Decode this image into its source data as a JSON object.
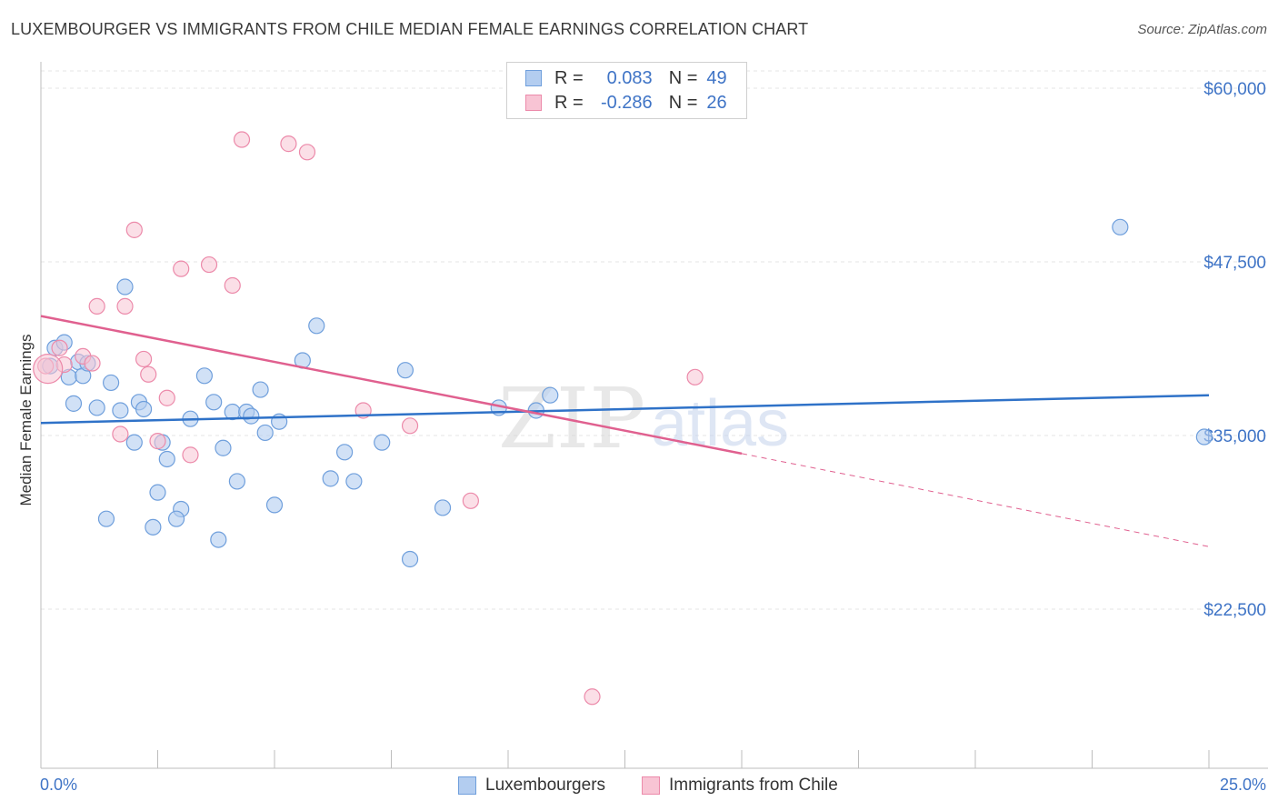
{
  "header": {
    "title": "LUXEMBOURGER VS IMMIGRANTS FROM CHILE MEDIAN FEMALE EARNINGS CORRELATION CHART",
    "source": "Source: ZipAtlas.com"
  },
  "watermark": {
    "zip": "ZIP",
    "atlas": "atlas"
  },
  "legend": {
    "rows": [
      {
        "r_label": "R =",
        "r_value": "0.083",
        "n_label": "N =",
        "n_value": "49"
      },
      {
        "r_label": "R =",
        "r_value": "-0.286",
        "n_label": "N =",
        "n_value": "26"
      }
    ]
  },
  "bottom_legend": {
    "series1": "Luxembourgers",
    "series2": "Immigrants from Chile"
  },
  "colors": {
    "blue": "#2f72c8",
    "blue_fill": "#b3cdf0",
    "blue_stroke": "#6f9fdc",
    "pink": "#e0608f",
    "pink_fill": "#f8c4d4",
    "pink_stroke": "#ec8aaa",
    "grid": "#e4e4e4",
    "axis_text": "#3f74c6"
  },
  "chart_data": {
    "type": "scatter",
    "title": "LUXEMBOURGER VS IMMIGRANTS FROM CHILE MEDIAN FEMALE EARNINGS CORRELATION CHART",
    "xlabel": "",
    "ylabel": "Median Female Earnings",
    "xlim": [
      0,
      25
    ],
    "ylim": [
      10500,
      63000
    ],
    "x_tick_labels": [
      "0.0%",
      "25.0%"
    ],
    "y_ticks": [
      22500,
      35000,
      47500,
      60000
    ],
    "y_tick_labels": [
      "$22,500",
      "$35,000",
      "$47,500",
      "$60,000"
    ],
    "grid": true,
    "series": [
      {
        "name": "Luxembourgers",
        "points": [
          [
            0.2,
            40000
          ],
          [
            0.3,
            41300
          ],
          [
            0.5,
            41700
          ],
          [
            0.6,
            39200
          ],
          [
            0.7,
            37300
          ],
          [
            0.8,
            40300
          ],
          [
            0.9,
            39300
          ],
          [
            1.0,
            40200
          ],
          [
            1.2,
            37000
          ],
          [
            1.5,
            38800
          ],
          [
            1.7,
            36800
          ],
          [
            1.8,
            45700
          ],
          [
            2.0,
            34500
          ],
          [
            2.1,
            37400
          ],
          [
            2.2,
            36900
          ],
          [
            2.4,
            28400
          ],
          [
            2.5,
            30900
          ],
          [
            2.6,
            34500
          ],
          [
            2.7,
            33300
          ],
          [
            3.0,
            29700
          ],
          [
            3.2,
            36200
          ],
          [
            3.5,
            39300
          ],
          [
            3.7,
            37400
          ],
          [
            3.8,
            27500
          ],
          [
            3.9,
            34100
          ],
          [
            4.1,
            36700
          ],
          [
            4.2,
            31700
          ],
          [
            4.4,
            36700
          ],
          [
            4.5,
            36400
          ],
          [
            4.7,
            38300
          ],
          [
            4.8,
            35200
          ],
          [
            5.0,
            30000
          ],
          [
            5.1,
            36000
          ],
          [
            5.6,
            40400
          ],
          [
            5.9,
            42900
          ],
          [
            6.2,
            31900
          ],
          [
            6.5,
            33800
          ],
          [
            6.7,
            31700
          ],
          [
            7.3,
            34500
          ],
          [
            7.8,
            39700
          ],
          [
            7.9,
            26100
          ],
          [
            8.6,
            29800
          ],
          [
            9.8,
            37000
          ],
          [
            10.6,
            36800
          ],
          [
            10.9,
            37900
          ],
          [
            23.1,
            50000
          ],
          [
            24.9,
            34900
          ],
          [
            2.9,
            29000
          ],
          [
            1.4,
            29000
          ]
        ],
        "trend": {
          "x": [
            0,
            25
          ],
          "y": [
            35900,
            37900
          ]
        }
      },
      {
        "name": "Immigrants from Chile",
        "points": [
          [
            0.1,
            40000
          ],
          [
            0.4,
            41300
          ],
          [
            0.5,
            40100
          ],
          [
            0.9,
            40700
          ],
          [
            1.1,
            40200
          ],
          [
            1.2,
            44300
          ],
          [
            1.7,
            35100
          ],
          [
            1.8,
            44300
          ],
          [
            2.0,
            49800
          ],
          [
            2.2,
            40500
          ],
          [
            2.3,
            39400
          ],
          [
            2.5,
            34600
          ],
          [
            2.7,
            37700
          ],
          [
            3.0,
            47000
          ],
          [
            3.2,
            33600
          ],
          [
            3.6,
            47300
          ],
          [
            4.1,
            45800
          ],
          [
            4.3,
            56300
          ],
          [
            5.3,
            56000
          ],
          [
            5.7,
            55400
          ],
          [
            6.9,
            36800
          ],
          [
            7.9,
            35700
          ],
          [
            9.2,
            30300
          ],
          [
            11.8,
            16200
          ],
          [
            14.0,
            39200
          ],
          [
            0.15,
            39800
          ]
        ],
        "trend": {
          "x": [
            0,
            15
          ],
          "y": [
            43600,
            33700
          ]
        },
        "trend_extension": {
          "x": [
            15,
            25
          ],
          "y": [
            33700,
            27000
          ]
        }
      }
    ]
  }
}
